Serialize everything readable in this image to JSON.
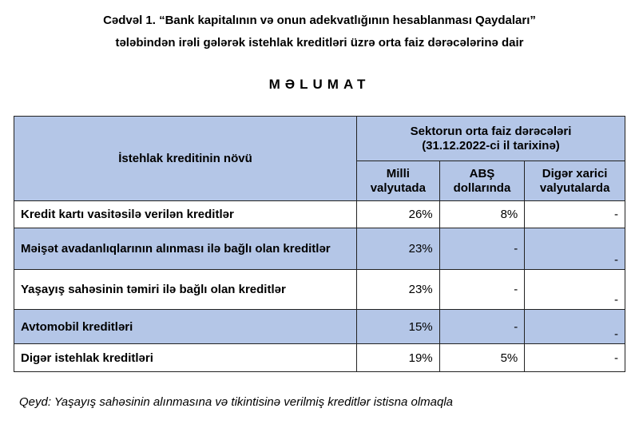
{
  "title_line1": "Cədvəl 1. “Bank kapitalının və onun adekvatlığının hesablanması Qaydaları”",
  "title_line2": "tələbindən irəli gələrək istehlak kreditləri üzrə orta faiz dərəcələrinə dair",
  "heading": "MƏLUMAT",
  "table": {
    "col_type": "İstehlak kreditinin növü",
    "group_header_line1": "Sektorun orta faiz dərəcələri",
    "group_header_line2": "(31.12.2022-ci il tarixinə)",
    "sub_headers": [
      [
        "Milli",
        "valyutada"
      ],
      [
        "ABŞ",
        "dollarında"
      ],
      [
        "Digər xarici",
        "valyutalarda"
      ]
    ],
    "rows": [
      {
        "type": "Kredit kartı vasitəsilə verilən kreditlər",
        "national": "26%",
        "usd": "8%",
        "other": "-"
      },
      {
        "type": "Məişət avadanlıqlarının alınması ilə bağlı olan kreditlər",
        "national": "23%",
        "usd": "-",
        "other": "-"
      },
      {
        "type": "Yaşayış sahəsinin təmiri ilə bağlı olan kreditlər",
        "national": "23%",
        "usd": "-",
        "other": "-"
      },
      {
        "type": "Avtomobil kreditləri",
        "national": "15%",
        "usd": "-",
        "other": "-"
      },
      {
        "type": "Digər istehlak kreditləri",
        "national": "19%",
        "usd": "5%",
        "other": "-"
      }
    ]
  },
  "note": "Qeyd: Yaşayış sahəsinin alınmasına və tikintisinə verilmiş kreditlər istisna olmaqla",
  "colors": {
    "header_fill": "#b4c6e7"
  }
}
